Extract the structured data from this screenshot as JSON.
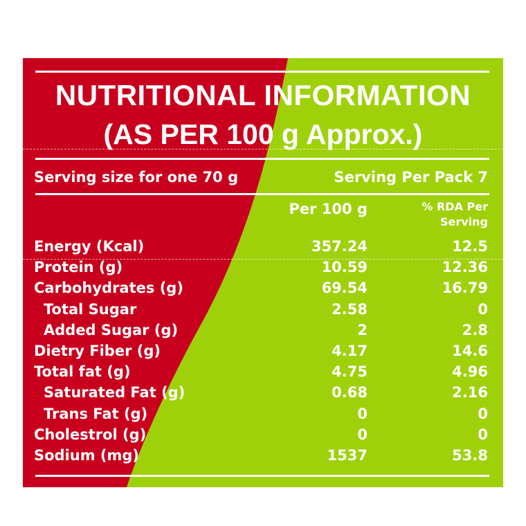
{
  "colors": {
    "red": "#c8001e",
    "green": "#9fd10a",
    "text": "#ffffff"
  },
  "title": {
    "line1": "NUTRITIONAL INFORMATION",
    "line2": "(AS PER 100 g Approx.)"
  },
  "serving": {
    "size": "Serving size for one 70 g",
    "per_pack": "Serving Per Pack 7"
  },
  "columns": {
    "per100": "Per 100 g",
    "rda": "% RDA Per Serving"
  },
  "rows": [
    {
      "label": "Energy (Kcal)",
      "per100": "357.24",
      "rda": "12.5",
      "indent": false
    },
    {
      "label": "Protein (g)",
      "per100": "10.59",
      "rda": "12.36",
      "indent": false
    },
    {
      "label": "Carbohydrates (g)",
      "per100": "69.54",
      "rda": "16.79",
      "indent": false
    },
    {
      "label": "Total Sugar",
      "per100": "2.58",
      "rda": "0",
      "indent": true
    },
    {
      "label": "Added Sugar (g)",
      "per100": "2",
      "rda": "2.8",
      "indent": true
    },
    {
      "label": "Dietry Fiber (g)",
      "per100": "4.17",
      "rda": "14.6",
      "indent": false
    },
    {
      "label": "Total fat (g)",
      "per100": "4.75",
      "rda": "4.96",
      "indent": false
    },
    {
      "label": "Saturated Fat (g)",
      "per100": "0.68",
      "rda": "2.16",
      "indent": true
    },
    {
      "label": "Trans Fat (g)",
      "per100": "0",
      "rda": "0",
      "indent": true
    },
    {
      "label": "Cholestrol (g)",
      "per100": "0",
      "rda": "0",
      "indent": false
    },
    {
      "label": "Sodium (mg)",
      "per100": "1537",
      "rda": "53.8",
      "indent": false
    }
  ]
}
